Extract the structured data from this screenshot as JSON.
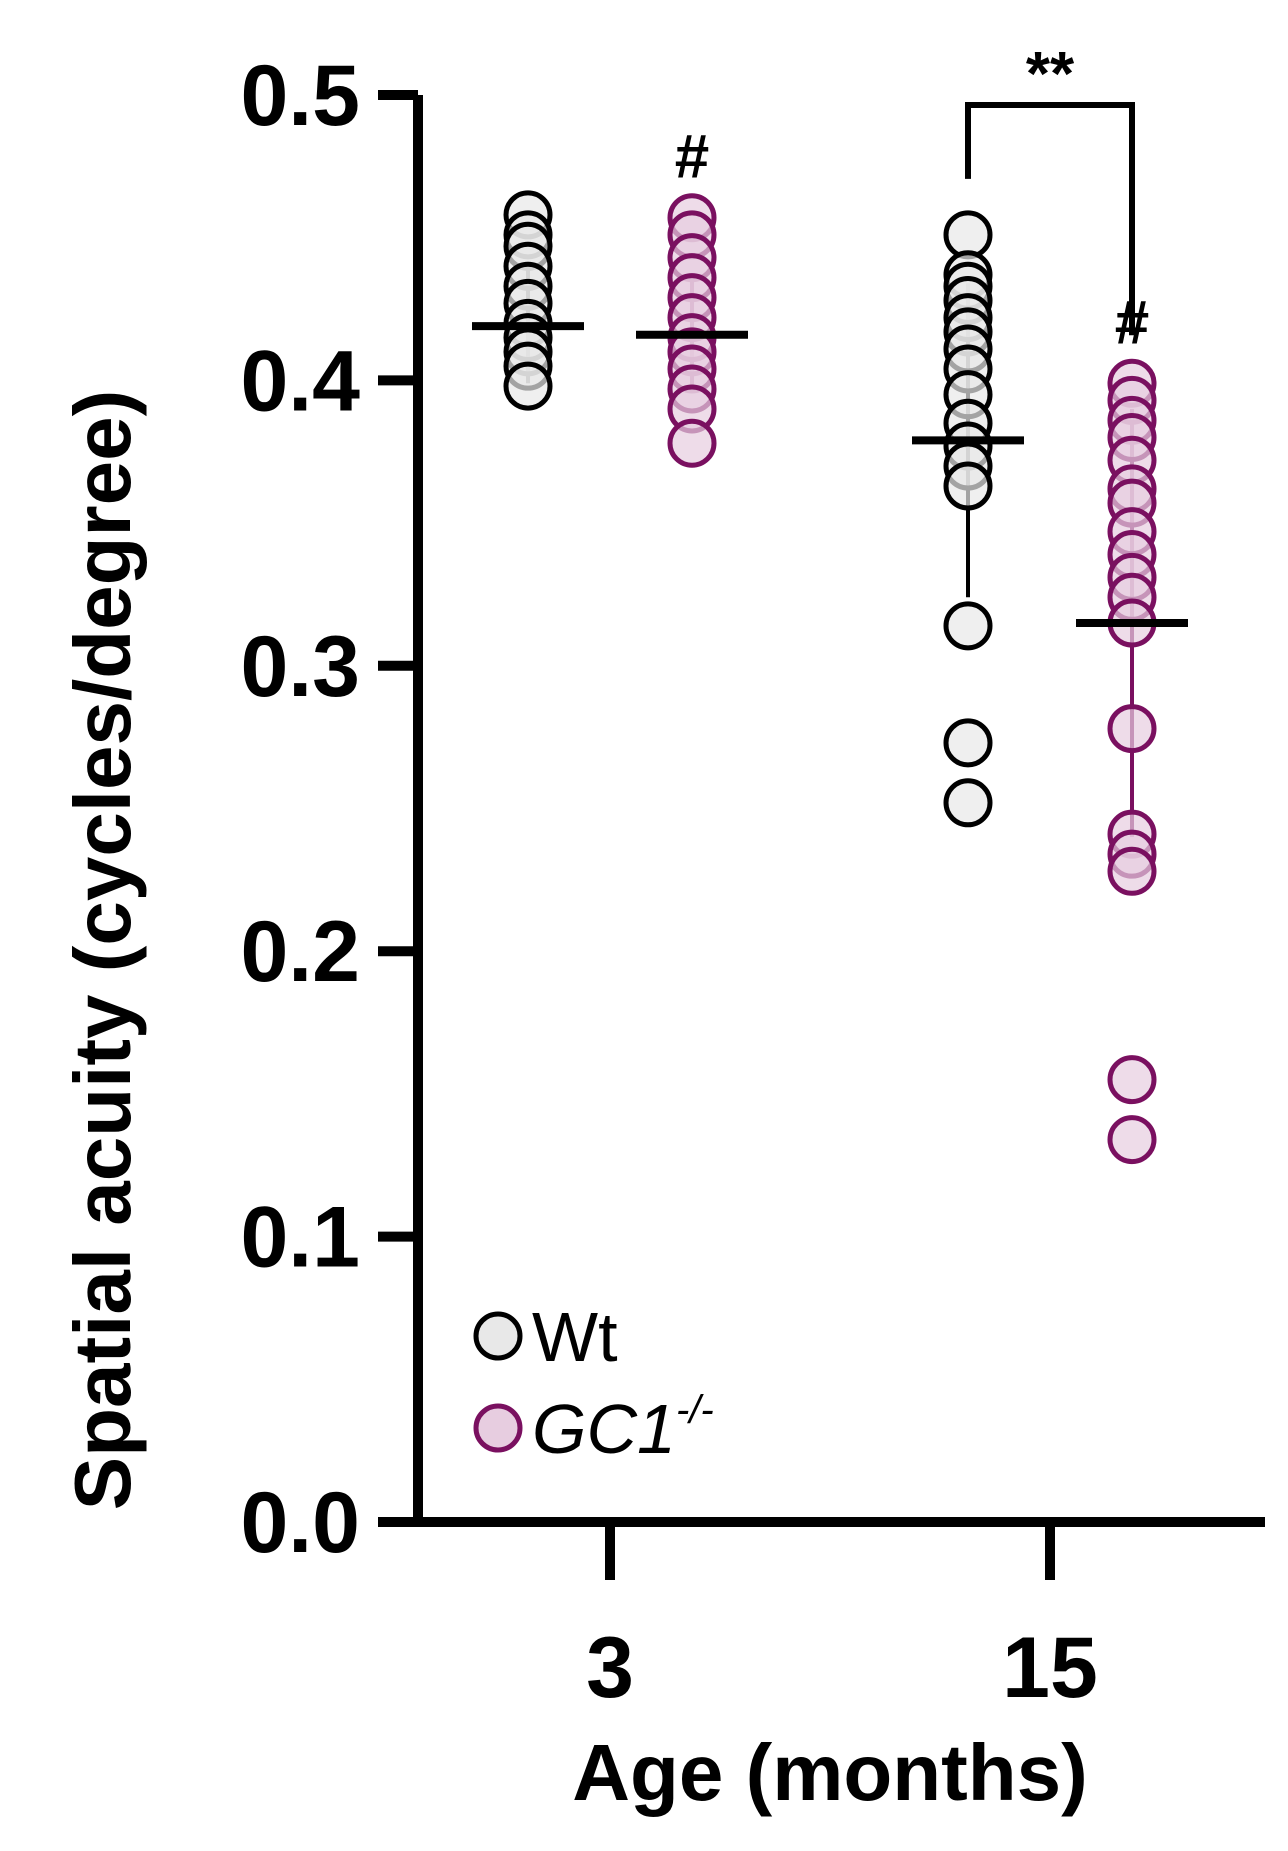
{
  "chart_data": {
    "type": "scatter",
    "ylabel": "Spatial acuity (cycles/degree)",
    "xlabel": "Age (months)",
    "categories": [
      "3",
      "15"
    ],
    "ylim": [
      0,
      0.5
    ],
    "yticks": [
      "0.0",
      "0.1",
      "0.2",
      "0.3",
      "0.4",
      "0.5"
    ],
    "series": [
      {
        "name": "Wt",
        "color": "#000000",
        "fill": "#e8e8e8",
        "points": {
          "3": [
            0.458,
            0.451,
            0.447,
            0.44,
            0.433,
            0.427,
            0.42,
            0.415,
            0.41,
            0.405,
            0.398
          ],
          "15": [
            0.451,
            0.437,
            0.433,
            0.428,
            0.422,
            0.417,
            0.411,
            0.404,
            0.395,
            0.385,
            0.377,
            0.37,
            0.363,
            0.314,
            0.273,
            0.252
          ]
        },
        "mean": {
          "3": 0.419,
          "15": 0.379
        },
        "sd": {
          "3": 0.02,
          "15": 0.055
        }
      },
      {
        "name": "GC1",
        "name_superscript": "-/-",
        "color": "#7a1060",
        "fill": "#e7cde0",
        "points": {
          "3": [
            0.457,
            0.451,
            0.443,
            0.436,
            0.429,
            0.422,
            0.415,
            0.41,
            0.404,
            0.397,
            0.39,
            0.378
          ],
          "15": [
            0.399,
            0.393,
            0.386,
            0.38,
            0.372,
            0.362,
            0.357,
            0.347,
            0.339,
            0.331,
            0.324,
            0.315,
            0.278,
            0.241,
            0.234,
            0.228,
            0.155,
            0.134
          ]
        },
        "mean": {
          "3": 0.416,
          "15": 0.315
        },
        "sd": {
          "3": 0.02,
          "15": 0.075
        }
      }
    ],
    "annotations": [
      {
        "text": "#",
        "group": "3",
        "series": "GC1"
      },
      {
        "text": "#",
        "group": "15",
        "series": "GC1"
      },
      {
        "text": "**",
        "group": "15",
        "bracket": [
          "Wt",
          "GC1"
        ]
      }
    ],
    "legend": "bottom-left"
  }
}
